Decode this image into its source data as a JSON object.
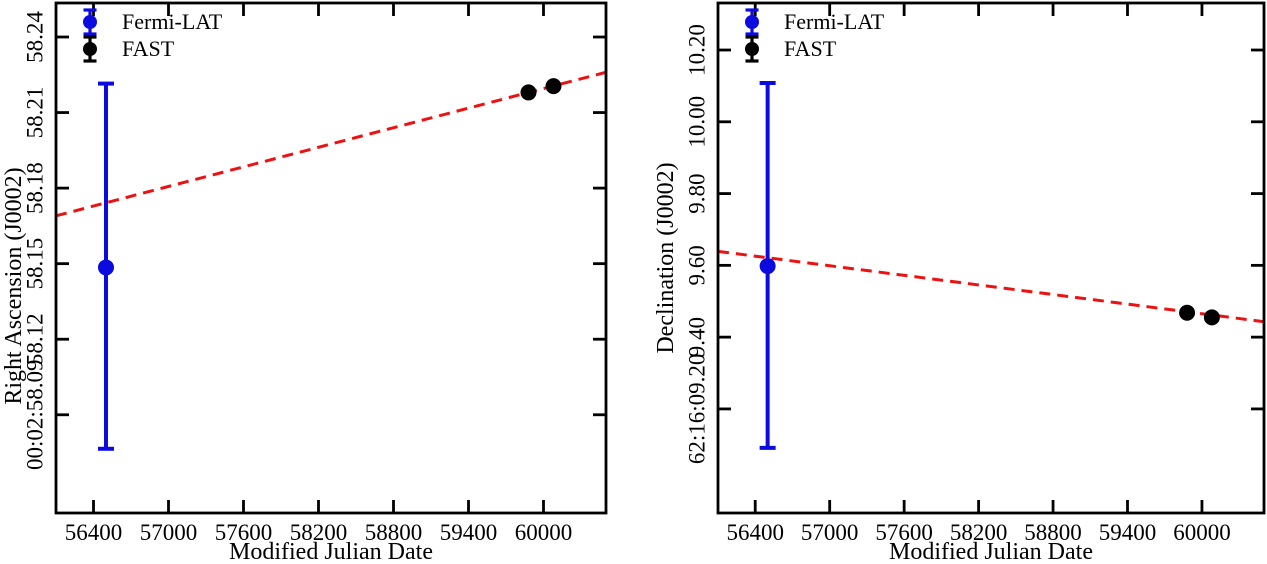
{
  "figure": {
    "background": "#ffffff",
    "axis_color": "#000000",
    "legend": {
      "position": "top-left",
      "entries": [
        {
          "label": "Fermi-LAT",
          "color": "#0b0bdf"
        },
        {
          "label": "FAST",
          "color": "#000000"
        }
      ]
    }
  },
  "chart_data": [
    {
      "id": "ra",
      "type": "scatter",
      "xlabel": "Modified Julian Date",
      "ylabel": "Right Ascension (J0002)",
      "xlim": [
        56100,
        60500
      ],
      "ylim": [
        58.051,
        58.2535
      ],
      "grid": false,
      "xticks": [
        {
          "v": 56400,
          "label": "56400"
        },
        {
          "v": 57000,
          "label": "57000"
        },
        {
          "v": 57600,
          "label": "57600"
        },
        {
          "v": 58200,
          "label": "58200"
        },
        {
          "v": 58800,
          "label": "58800"
        },
        {
          "v": 59400,
          "label": "59400"
        },
        {
          "v": 60000,
          "label": "60000"
        }
      ],
      "yticks": [
        {
          "v": 58.24,
          "label": "58.24"
        },
        {
          "v": 58.21,
          "label": "58.21"
        },
        {
          "v": 58.18,
          "label": "58.18"
        },
        {
          "v": 58.15,
          "label": "58.15"
        },
        {
          "v": 58.12,
          "label": "58.12"
        },
        {
          "v": 58.09,
          "label": "00:02:58.09"
        }
      ],
      "series": [
        {
          "name": "Fermi-LAT",
          "color": "#0b0bdf",
          "points": [
            {
              "x": 56500,
              "y": 58.1485,
              "y_err_low": 58.0765,
              "y_err_high": 58.2215
            }
          ]
        },
        {
          "name": "FAST",
          "color": "#000000",
          "points": [
            {
              "x": 59880,
              "y": 58.218
            },
            {
              "x": 60080,
              "y": 58.2205
            }
          ]
        }
      ],
      "fit_line": {
        "color": "#ee1111",
        "style": "dashed",
        "x": [
          56100,
          60500
        ],
        "y": [
          58.169,
          58.226
        ]
      }
    },
    {
      "id": "dec",
      "type": "scatter",
      "xlabel": "Modified Julian Date",
      "ylabel": "Declination (J0002)",
      "xlim": [
        56100,
        60500
      ],
      "ylim": [
        8.91,
        10.331
      ],
      "grid": false,
      "xticks": [
        {
          "v": 56400,
          "label": "56400"
        },
        {
          "v": 57000,
          "label": "57000"
        },
        {
          "v": 57600,
          "label": "57600"
        },
        {
          "v": 58200,
          "label": "58200"
        },
        {
          "v": 58800,
          "label": "58800"
        },
        {
          "v": 59400,
          "label": "59400"
        },
        {
          "v": 60000,
          "label": "60000"
        }
      ],
      "yticks": [
        {
          "v": 10.2,
          "label": "10.20"
        },
        {
          "v": 10.0,
          "label": "10.00"
        },
        {
          "v": 9.8,
          "label": "9.80"
        },
        {
          "v": 9.6,
          "label": "9.60"
        },
        {
          "v": 9.4,
          "label": "9.40"
        },
        {
          "v": 9.2,
          "label": "62:16:09.20"
        }
      ],
      "series": [
        {
          "name": "Fermi-LAT",
          "color": "#0b0bdf",
          "points": [
            {
              "x": 56500,
              "y": 9.598,
              "y_err_low": 9.0915,
              "y_err_high": 10.108
            }
          ]
        },
        {
          "name": "FAST",
          "color": "#000000",
          "points": [
            {
              "x": 59880,
              "y": 9.468
            },
            {
              "x": 60080,
              "y": 9.455
            }
          ]
        }
      ],
      "fit_line": {
        "color": "#ee1111",
        "style": "dashed",
        "x": [
          56100,
          60500
        ],
        "y": [
          9.639,
          9.443
        ]
      }
    }
  ]
}
